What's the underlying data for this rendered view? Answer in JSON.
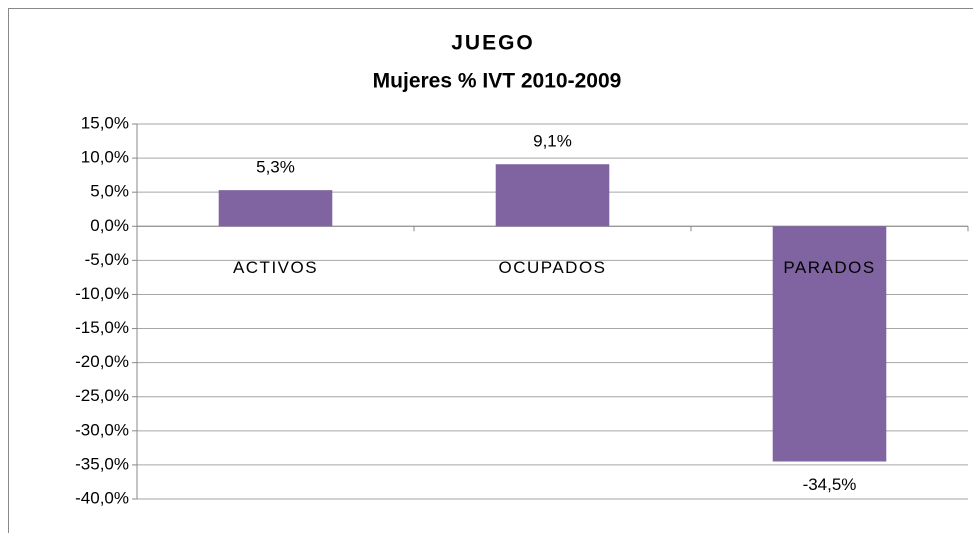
{
  "chart_data": {
    "type": "bar",
    "title": "JUEGO",
    "subtitle": "Mujeres % IVT 2010-2009",
    "categories": [
      "ACTIVOS",
      "OCUPADOS",
      "PARADOS"
    ],
    "values": [
      5.3,
      9.1,
      -34.5
    ],
    "value_labels": [
      "5,3%",
      "9,1%",
      "-34,5%"
    ],
    "color": "#8064a2",
    "ylim": [
      -40,
      15
    ],
    "yticks": [
      {
        "value": 15,
        "label": "15,0%"
      },
      {
        "value": 10,
        "label": "10,0%"
      },
      {
        "value": 5,
        "label": "5,0%"
      },
      {
        "value": 0,
        "label": "0,0%"
      },
      {
        "value": -5,
        "label": "-5,0%"
      },
      {
        "value": -10,
        "label": "-10,0%"
      },
      {
        "value": -15,
        "label": "-15,0%"
      },
      {
        "value": -20,
        "label": "-20,0%"
      },
      {
        "value": -25,
        "label": "-25,0%"
      },
      {
        "value": -30,
        "label": "-30,0%"
      },
      {
        "value": -35,
        "label": "-35,0%"
      },
      {
        "value": -40,
        "label": "-40,0%"
      }
    ],
    "grid": true
  }
}
